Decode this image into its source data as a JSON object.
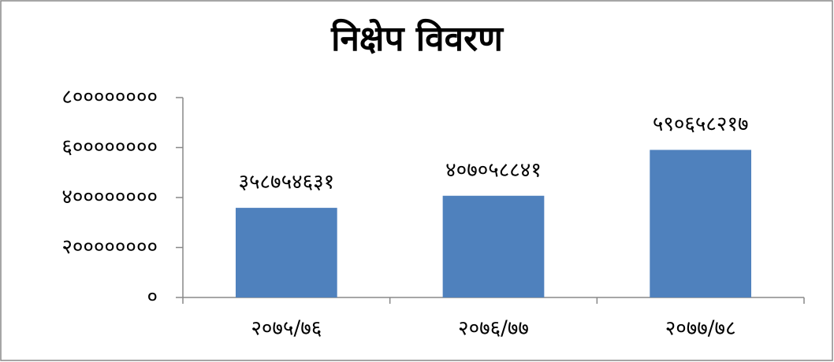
{
  "chart_data": {
    "type": "bar",
    "title": "निक्षेप विवरण",
    "categories": [
      "२०७५/७६",
      "२०७६/७७",
      "२०७७/७८"
    ],
    "values": [
      358754631,
      407058841,
      590658217
    ],
    "value_labels": [
      "३५८७५४६३१",
      "४०७०५८८४१",
      "५९०६५८२१७"
    ],
    "color": "#4f81bd",
    "ylim": [
      0,
      800000000
    ],
    "yticks": [
      {
        "value": 0,
        "label": "०"
      },
      {
        "value": 200000000,
        "label": "२००००००००"
      },
      {
        "value": 400000000,
        "label": "४००००००००"
      },
      {
        "value": 600000000,
        "label": "६००००००००"
      },
      {
        "value": 800000000,
        "label": "८००००००००"
      }
    ]
  }
}
